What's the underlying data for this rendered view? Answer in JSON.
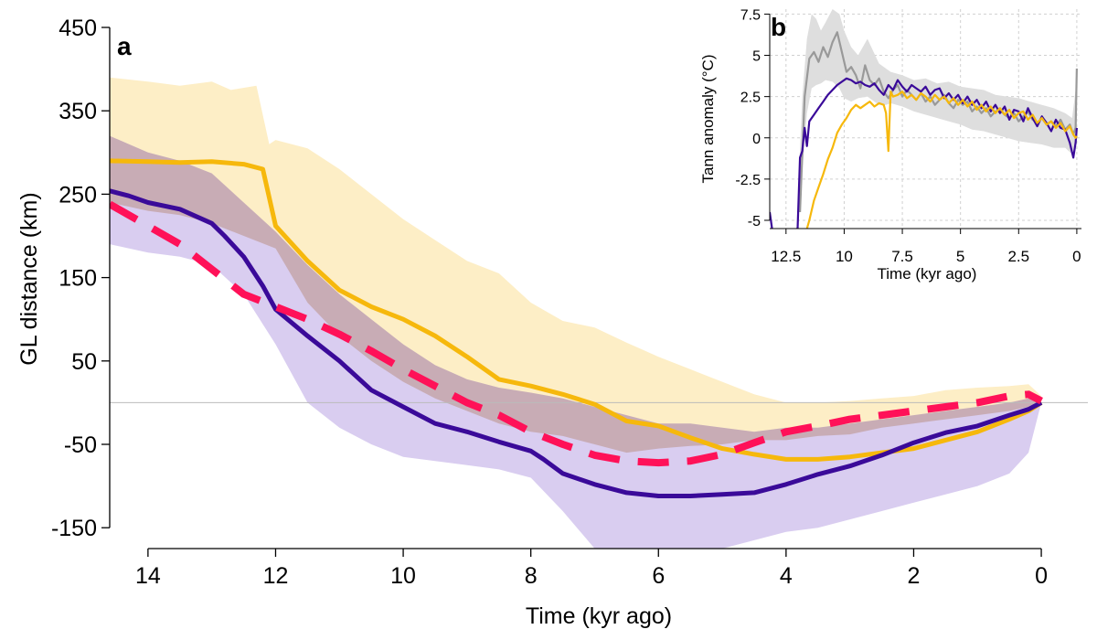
{
  "chart_data": [
    {
      "type": "line",
      "panel_label": "a",
      "xlabel": "Time (kyr ago)",
      "ylabel": "GL distance (km)",
      "xlim": [
        14.6,
        -0.3
      ],
      "ylim": [
        -175,
        450
      ],
      "x_ticks": [
        14,
        12,
        10,
        8,
        6,
        4,
        2,
        0
      ],
      "y_ticks": [
        450,
        350,
        250,
        150,
        50,
        -50,
        -150
      ],
      "reference_line_y": 0,
      "grid": false,
      "bands": [
        {
          "color": "#fdeec6",
          "x": [
            14.6,
            14,
            13.5,
            13,
            12.7,
            12.3,
            12.1,
            12,
            11.5,
            11,
            10.5,
            10,
            9.5,
            9,
            8.5,
            8,
            7.5,
            7,
            6.5,
            6,
            5.5,
            5,
            4.5,
            4,
            3.5,
            3,
            2.5,
            2,
            1.5,
            1,
            0.5,
            0.2,
            0
          ],
          "upper": [
            390,
            385,
            380,
            385,
            375,
            380,
            310,
            315,
            305,
            280,
            250,
            220,
            195,
            170,
            155,
            120,
            98,
            90,
            72,
            55,
            40,
            25,
            10,
            0,
            0,
            2,
            5,
            8,
            15,
            18,
            20,
            22,
            8
          ],
          "lower": [
            240,
            230,
            225,
            215,
            200,
            185,
            175,
            160,
            120,
            80,
            50,
            25,
            5,
            -10,
            -25,
            -35,
            -40,
            -50,
            -60,
            -55,
            -52,
            -50,
            -45,
            -45,
            -40,
            -38,
            -30,
            -25,
            -20,
            -15,
            -10,
            -5,
            0
          ]
        },
        {
          "color": "#d9cdf0",
          "x": [
            14.6,
            14,
            13.5,
            13,
            12.5,
            12,
            11.5,
            11,
            10.5,
            10,
            9.5,
            9,
            8.5,
            8,
            7.5,
            7,
            6.5,
            6,
            5.5,
            5,
            4.5,
            4,
            3.5,
            3,
            2.5,
            2,
            1.5,
            1,
            0.5,
            0.2,
            0
          ],
          "upper": [
            320,
            300,
            290,
            275,
            240,
            205,
            165,
            130,
            100,
            70,
            45,
            28,
            18,
            12,
            5,
            -5,
            -15,
            -25,
            -25,
            -30,
            -35,
            -30,
            -30,
            -25,
            -20,
            -15,
            -10,
            -5,
            0,
            5,
            0
          ],
          "lower": [
            190,
            180,
            175,
            165,
            130,
            70,
            0,
            -30,
            -50,
            -65,
            -70,
            -75,
            -80,
            -90,
            -130,
            -175,
            -180,
            -180,
            -178,
            -175,
            -165,
            -155,
            -150,
            -140,
            -130,
            -120,
            -110,
            -100,
            -85,
            -60,
            0
          ]
        },
        {
          "color": "rgba(176,123,92,0.4)",
          "x": [
            14.6,
            14,
            13.5,
            13,
            12.5,
            12,
            11.5,
            11,
            10.5,
            10,
            9.5,
            9,
            8.5,
            8,
            7.5,
            7,
            6.5,
            6,
            5.5,
            5,
            4.5,
            4,
            3.5,
            3,
            2.5,
            2,
            1.5,
            1,
            0.5,
            0.2,
            0
          ],
          "upper": [
            320,
            300,
            290,
            275,
            240,
            205,
            165,
            130,
            100,
            70,
            45,
            28,
            18,
            12,
            5,
            -5,
            -15,
            -25,
            -25,
            -30,
            -35,
            -30,
            -30,
            -25,
            -20,
            -15,
            -10,
            -5,
            0,
            5,
            0
          ],
          "lower": [
            240,
            230,
            225,
            215,
            200,
            185,
            120,
            80,
            50,
            25,
            5,
            -10,
            -25,
            -35,
            -40,
            -50,
            -60,
            -55,
            -52,
            -50,
            -45,
            -45,
            -40,
            -38,
            -30,
            -25,
            -20,
            -15,
            -10,
            -5,
            0
          ]
        }
      ],
      "series": [
        {
          "color": "#f6b80c",
          "dash": "solid",
          "x": [
            14.6,
            14,
            13.5,
            13,
            12.5,
            12.2,
            12,
            11.5,
            11,
            10.5,
            10,
            9.5,
            9,
            8.5,
            8,
            7.5,
            7,
            6.5,
            6,
            5.5,
            5,
            4.5,
            4,
            3.5,
            3,
            2.5,
            2,
            1.5,
            1,
            0.5,
            0.2,
            0
          ],
          "y": [
            290,
            289,
            288,
            289,
            286,
            280,
            212,
            170,
            135,
            115,
            100,
            80,
            55,
            28,
            20,
            10,
            -2,
            -22,
            -28,
            -42,
            -55,
            -62,
            -68,
            -68,
            -65,
            -60,
            -55,
            -45,
            -35,
            -20,
            -10,
            0
          ]
        },
        {
          "color": "#3a0a99",
          "dash": "solid",
          "x": [
            14.6,
            14.3,
            14,
            13.5,
            13,
            12.8,
            12.5,
            12.2,
            12,
            11.5,
            11,
            10.5,
            10,
            9.5,
            9,
            8.5,
            8,
            7.8,
            7.5,
            7,
            6.5,
            6,
            5.5,
            5,
            4.5,
            4,
            3.5,
            3,
            2.5,
            2,
            1.5,
            1,
            0.5,
            0.2,
            0
          ],
          "y": [
            254,
            248,
            240,
            232,
            215,
            200,
            175,
            140,
            112,
            80,
            50,
            15,
            -5,
            -25,
            -35,
            -47,
            -58,
            -68,
            -85,
            -98,
            -108,
            -112,
            -112,
            -110,
            -108,
            -98,
            -86,
            -76,
            -63,
            -48,
            -36,
            -28,
            -15,
            -8,
            0
          ]
        },
        {
          "color": "#ff1158",
          "dash": "dashed",
          "x": [
            14.6,
            14,
            13.5,
            13,
            12.5,
            12,
            11.5,
            11,
            10.5,
            10,
            9.5,
            9,
            8.5,
            8,
            7.5,
            7,
            6.5,
            6,
            5.5,
            5,
            4.5,
            4,
            3.5,
            3,
            2.5,
            2,
            1.5,
            1,
            0.5,
            0.2,
            0
          ],
          "y": [
            238,
            212,
            190,
            160,
            130,
            115,
            100,
            82,
            62,
            40,
            20,
            0,
            -15,
            -35,
            -50,
            -63,
            -70,
            -72,
            -70,
            -62,
            -48,
            -35,
            -28,
            -20,
            -15,
            -10,
            -5,
            0,
            8,
            10,
            2
          ]
        }
      ]
    },
    {
      "type": "line",
      "panel_label": "b",
      "xlabel": "Time (kyr ago)",
      "ylabel": "Tann anomaly (°C)",
      "xlim": [
        13.2,
        -0.2
      ],
      "ylim": [
        -5.5,
        7.8
      ],
      "x_ticks": [
        "12.5",
        "10",
        "7.5",
        "5",
        "2.5",
        "0"
      ],
      "y_ticks": [
        "7.5",
        "5",
        "2.5",
        "0",
        "-2.5",
        "-5"
      ],
      "grid": true,
      "grid_color": "#d0d0d0",
      "band": {
        "color": "#dedede",
        "x": [
          12,
          11.8,
          11.6,
          11.4,
          11.2,
          11,
          10.8,
          10.5,
          10.2,
          10,
          9.7,
          9.4,
          9,
          8.5,
          8.2,
          8,
          7.5,
          7,
          6.5,
          6,
          5.5,
          5,
          4.5,
          4,
          3.5,
          3,
          2.5,
          2,
          1.5,
          1,
          0.5,
          0.2,
          0
        ],
        "upper": [
          -4,
          2.5,
          6,
          7.5,
          7.2,
          6.5,
          7,
          7.8,
          7.5,
          6.5,
          5.5,
          5,
          6,
          4.5,
          4.2,
          4,
          3.8,
          3.5,
          3.6,
          3.3,
          3.4,
          3.1,
          3,
          2.9,
          2.6,
          2.5,
          2.4,
          2.2,
          2,
          1.8,
          1.5,
          1.2,
          3.5
        ],
        "lower": [
          -5.5,
          -2,
          1.5,
          3,
          3.2,
          3.3,
          3.5,
          3.4,
          3,
          2.4,
          2.2,
          2.4,
          2.5,
          2.0,
          2.0,
          2.1,
          1.9,
          1.6,
          1.4,
          1.2,
          1.0,
          0.8,
          0.5,
          0.4,
          0.2,
          0,
          -0.2,
          -0.3,
          -0.4,
          -0.6,
          -0.6,
          -1.0,
          0
        ]
      },
      "series": [
        {
          "color": "#999999",
          "dash": "solid",
          "x": [
            11.9,
            11.7,
            11.5,
            11.3,
            11.1,
            10.9,
            10.7,
            10.5,
            10.3,
            10.1,
            9.9,
            9.7,
            9.5,
            9.3,
            9.1,
            8.9,
            8.7,
            8.5,
            8.3,
            8.1,
            7.9,
            7.7,
            7.5,
            7.3,
            7.1,
            6.9,
            6.7,
            6.5,
            6.3,
            6.1,
            5.9,
            5.7,
            5.5,
            5.3,
            5.1,
            4.9,
            4.7,
            4.5,
            4.3,
            4.1,
            3.9,
            3.7,
            3.5,
            3.3,
            3.1,
            2.9,
            2.7,
            2.5,
            2.3,
            2.1,
            1.9,
            1.7,
            1.5,
            1.3,
            1.1,
            0.9,
            0.7,
            0.5,
            0.3,
            0.15,
            0.05,
            0
          ],
          "y": [
            -4.5,
            2.5,
            4.8,
            5.2,
            4.6,
            5.5,
            4.9,
            5.8,
            6.4,
            5.2,
            4.0,
            4.3,
            3.8,
            3.0,
            4.4,
            3.5,
            3.2,
            3.6,
            2.8,
            2.4,
            2.9,
            3.2,
            2.5,
            2.9,
            2.6,
            2.3,
            2.7,
            2.2,
            2.5,
            2.0,
            2.3,
            2.6,
            2.1,
            1.8,
            2.3,
            2.0,
            2.2,
            1.6,
            1.9,
            1.5,
            1.8,
            1.3,
            1.6,
            1.7,
            1.4,
            1.2,
            1.5,
            1.0,
            1.3,
            1.6,
            1.1,
            0.9,
            1.2,
            0.8,
            1.0,
            0.7,
            1.1,
            0.5,
            0.8,
            0.2,
            0.6,
            4.2
          ]
        },
        {
          "color": "#3a0a99",
          "dash": "solid",
          "x": [
            13.2,
            13.05,
            12.0,
            11.9,
            11.8,
            11.7,
            11.6,
            11.5,
            11.3,
            11.1,
            10.9,
            10.7,
            10.5,
            10.3,
            10.1,
            9.9,
            9.7,
            9.5,
            9.3,
            9.1,
            8.9,
            8.7,
            8.5,
            8.3,
            8.1,
            7.9,
            7.7,
            7.5,
            7.3,
            7.1,
            6.9,
            6.7,
            6.5,
            6.3,
            6.1,
            5.9,
            5.7,
            5.5,
            5.3,
            5.1,
            4.9,
            4.7,
            4.5,
            4.3,
            4.1,
            3.9,
            3.7,
            3.5,
            3.3,
            3.1,
            2.9,
            2.7,
            2.5,
            2.3,
            2.1,
            1.9,
            1.7,
            1.5,
            1.3,
            1.1,
            0.9,
            0.7,
            0.5,
            0.3,
            0.15,
            0.05,
            0
          ],
          "y": [
            -4.5,
            -6,
            -5.5,
            -1.2,
            -0.8,
            0.6,
            -0.5,
            1.0,
            1.4,
            1.8,
            2.2,
            2.6,
            2.9,
            3.2,
            3.4,
            3.6,
            3.5,
            3.3,
            3.4,
            3.2,
            3.1,
            3.3,
            2.9,
            2.6,
            3.2,
            2.9,
            3.5,
            3.1,
            2.8,
            3.2,
            3.0,
            2.8,
            3.1,
            2.6,
            2.9,
            3.0,
            2.4,
            2.7,
            2.3,
            2.6,
            2.1,
            2.5,
            2.0,
            2.3,
            1.8,
            2.2,
            1.6,
            2.0,
            1.5,
            1.9,
            1.1,
            1.7,
            1.6,
            1.0,
            1.8,
            1.2,
            0.7,
            1.3,
            0.9,
            0.4,
            1.1,
            0.6,
            0.5,
            -0.3,
            -1.2,
            -0.3,
            0.6
          ]
        },
        {
          "color": "#f6b80c",
          "dash": "solid",
          "x": [
            11.7,
            11.5,
            11.3,
            11.1,
            10.9,
            10.7,
            10.5,
            10.3,
            10.1,
            9.9,
            9.7,
            9.5,
            9.3,
            9.1,
            8.9,
            8.7,
            8.5,
            8.3,
            8.2,
            8.1,
            8.0,
            7.9,
            7.7,
            7.5,
            7.3,
            7.1,
            6.9,
            6.7,
            6.5,
            6.3,
            6.1,
            5.9,
            5.7,
            5.5,
            5.3,
            5.1,
            4.9,
            4.7,
            4.5,
            4.3,
            4.1,
            3.9,
            3.7,
            3.5,
            3.3,
            3.1,
            2.9,
            2.7,
            2.5,
            2.3,
            2.1,
            1.9,
            1.7,
            1.5,
            1.3,
            1.1,
            0.9,
            0.7,
            0.5,
            0.3,
            0.15,
            0.05,
            0
          ],
          "y": [
            -6,
            -5,
            -3.8,
            -3.0,
            -2.2,
            -1.3,
            -0.6,
            0.3,
            0.8,
            1.2,
            1.7,
            2.0,
            1.8,
            2.0,
            2.2,
            1.9,
            2.1,
            2.0,
            1.5,
            -0.8,
            2.8,
            2.5,
            2.6,
            2.8,
            2.4,
            2.6,
            2.3,
            2.7,
            2.5,
            2.2,
            2.6,
            2.3,
            2.5,
            2.1,
            2.4,
            2.0,
            2.3,
            1.9,
            2.2,
            1.7,
            2.0,
            1.6,
            1.9,
            1.5,
            1.8,
            1.4,
            1.7,
            1.2,
            1.5,
            1.6,
            1.1,
            1.4,
            0.9,
            1.2,
            0.8,
            1.0,
            0.6,
            0.9,
            0.4,
            0.7,
            0.2,
            0.0,
            0.1
          ]
        }
      ]
    }
  ]
}
